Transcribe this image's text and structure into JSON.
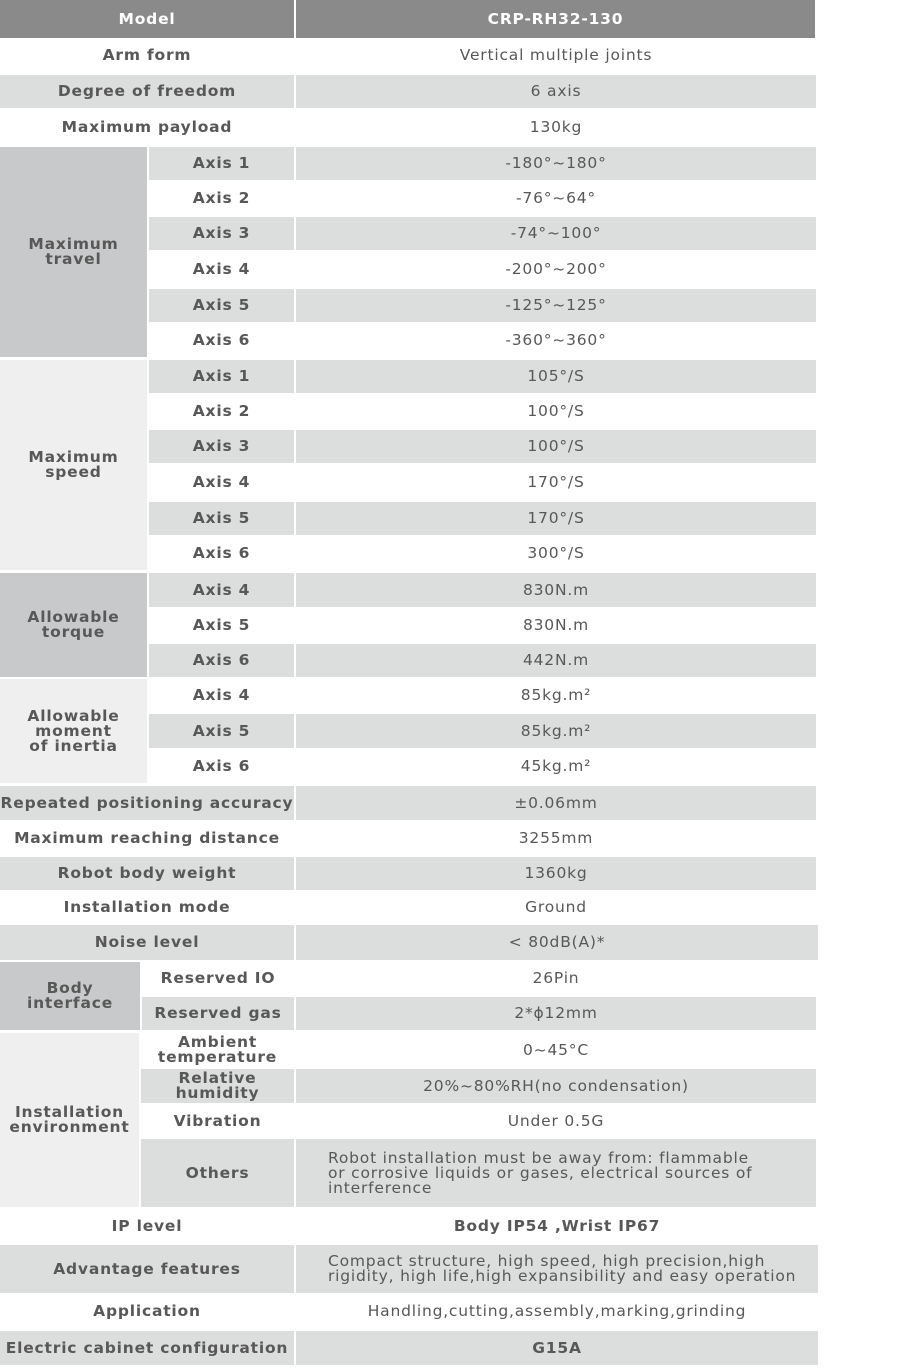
{
  "header": {
    "label": "Model",
    "value": "CRP-RH32-130"
  },
  "sections": [
    {
      "label": "Arm form",
      "value": "Vertical multiple joints"
    },
    {
      "label": "Degree of freedom",
      "value": "6 axis"
    },
    {
      "label": "Maximum payload",
      "value": "130kg"
    },
    {
      "group": "Maximum\ntravel",
      "items": [
        {
          "label": "Axis 1",
          "value": "-180°~180°"
        },
        {
          "label": "Axis 2",
          "value": "-76°~64°"
        },
        {
          "label": "Axis 3",
          "value": "-74°~100°"
        },
        {
          "label": "Axis 4",
          "value": "-200°~200°"
        },
        {
          "label": "Axis 5",
          "value": "-125°~125°"
        },
        {
          "label": "Axis 6",
          "value": "-360°~360°"
        }
      ]
    },
    {
      "group": "Maximum\nspeed",
      "items": [
        {
          "label": "Axis 1",
          "value": "105°/S"
        },
        {
          "label": "Axis 2",
          "value": "100°/S"
        },
        {
          "label": "Axis 3",
          "value": "100°/S"
        },
        {
          "label": "Axis 4",
          "value": "170°/S"
        },
        {
          "label": "Axis 5",
          "value": "170°/S"
        },
        {
          "label": "Axis 6",
          "value": "300°/S"
        }
      ]
    },
    {
      "group": "Allowable\ntorque",
      "items": [
        {
          "label": "Axis 4",
          "value": "830N.m"
        },
        {
          "label": "Axis 5",
          "value": "830N.m"
        },
        {
          "label": "Axis 6",
          "value": "442N.m"
        }
      ]
    },
    {
      "group": "Allowable\nmoment\nof inertia",
      "items": [
        {
          "label": "Axis 4",
          "value": "85kg.m²"
        },
        {
          "label": "Axis 5",
          "value": "85kg.m²"
        },
        {
          "label": "Axis 6",
          "value": "45kg.m²"
        }
      ]
    },
    {
      "label": "Repeated positioning accuracy",
      "value": "±0.06mm"
    },
    {
      "label": "Maximum reaching distance",
      "value": "3255mm"
    },
    {
      "label": "Robot body weight",
      "value": "1360kg"
    },
    {
      "label": "Installation mode",
      "value": "Ground"
    },
    {
      "label": "Noise level",
      "value": "< 80dB(A)*"
    },
    {
      "group": "Body\ninterface",
      "items": [
        {
          "label": "Reserved IO",
          "value": "26Pin"
        },
        {
          "label": "Reserved gas",
          "value": "2*ϕ12mm"
        }
      ]
    },
    {
      "group": "Installation\nenvironment",
      "items": [
        {
          "label": "Ambient\ntemperature",
          "value": "0~45°C"
        },
        {
          "label": "Relative\nhumidity",
          "value": "20%~80%RH(no condensation)"
        },
        {
          "label": "Vibration",
          "value": "Under 0.5G"
        },
        {
          "label": "Others",
          "value": "Robot installation must be away from: flammable\nor corrosive liquids or gases, electrical sources of\ninterference"
        }
      ]
    },
    {
      "label": "IP level",
      "value": "Body IP54 ,Wrist IP67"
    },
    {
      "label": "Advantage features",
      "value": "Compact structure, high speed, high precision,high\nrigidity, high life,high expansibility and easy operation"
    },
    {
      "label": "Application",
      "value": "Handling,cutting,assembly,marking,grinding"
    },
    {
      "label": "Electric cabinet configuration",
      "value": "G15A"
    }
  ]
}
